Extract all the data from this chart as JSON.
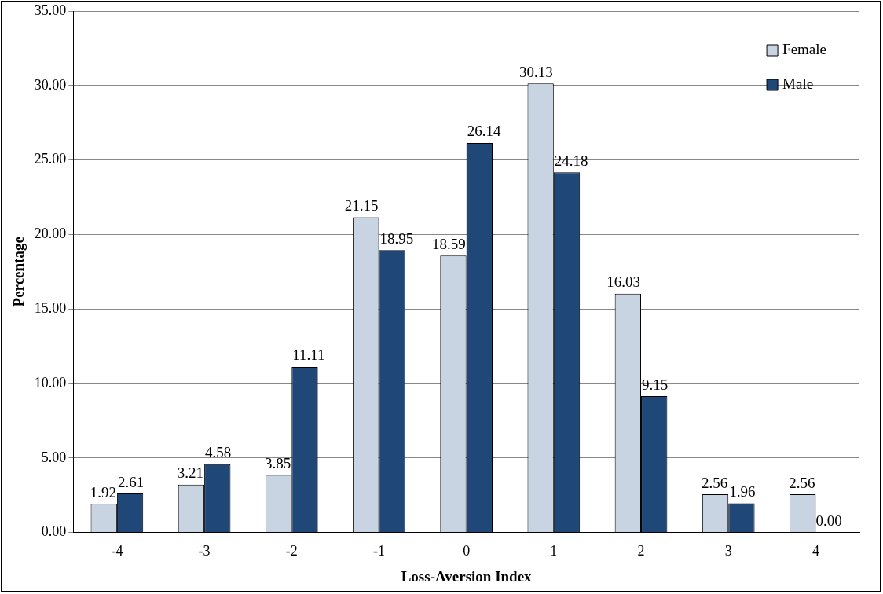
{
  "chart_data": {
    "type": "bar",
    "xlabel": "Loss-Aversion Index",
    "ylabel": "Percentage",
    "categories": [
      "-4",
      "-3",
      "-2",
      "-1",
      "0",
      "1",
      "2",
      "3",
      "4"
    ],
    "series": [
      {
        "name": "Female",
        "color": "#c9d4e3",
        "values": [
          1.92,
          3.21,
          3.85,
          21.15,
          18.59,
          30.13,
          16.03,
          2.56,
          2.56
        ],
        "value_labels": [
          "1.92",
          "3.21",
          "3.85",
          "21.15",
          "18.59",
          "30.13",
          "16.03",
          "2.56",
          "2.56"
        ]
      },
      {
        "name": "Male",
        "color": "#1f4878",
        "values": [
          2.61,
          4.58,
          11.11,
          18.95,
          26.14,
          24.18,
          9.15,
          1.96,
          0
        ],
        "value_labels": [
          "2.61",
          "4.58",
          "11.11",
          "18.95",
          "26.14",
          "24.18",
          "9.15",
          "1.96",
          "0.00"
        ]
      }
    ],
    "ylim": [
      0,
      35
    ],
    "yticks": [
      {
        "value": 0,
        "label": "0.00"
      },
      {
        "value": 5,
        "label": "5.00"
      },
      {
        "value": 10,
        "label": "10.00"
      },
      {
        "value": 15,
        "label": "15.00"
      },
      {
        "value": 20,
        "label": "20.00"
      },
      {
        "value": 25,
        "label": "25.00"
      },
      {
        "value": 30,
        "label": "30.00"
      },
      {
        "value": 35,
        "label": "35.00"
      }
    ],
    "grid": "y",
    "legend": "top right"
  }
}
